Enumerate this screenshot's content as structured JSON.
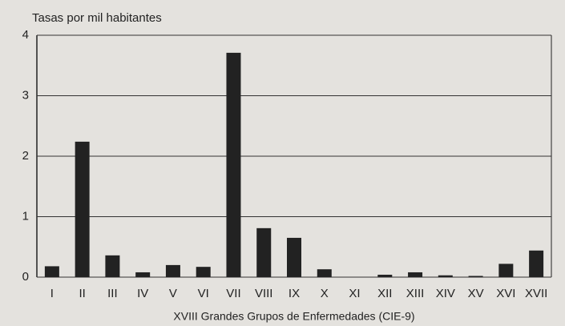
{
  "chart_data": {
    "type": "bar",
    "title": "Tasas por mil habitantes",
    "x_label": "XVIII Grandes Grupos de Enfermedades (CIE-9)",
    "categories": [
      "I",
      "II",
      "III",
      "IV",
      "V",
      "VI",
      "VII",
      "VIII",
      "IX",
      "X",
      "XI",
      "XII",
      "XIII",
      "XIV",
      "XV",
      "XVI",
      "XVII"
    ],
    "values": [
      0.18,
      2.24,
      0.36,
      0.08,
      0.2,
      0.17,
      3.71,
      0.81,
      0.65,
      0.13,
      0,
      0.04,
      0.08,
      0.03,
      0.02,
      0.22,
      0.44
    ],
    "color": "#222222",
    "ylim": [
      0,
      4
    ],
    "yticks": [
      0,
      1,
      2,
      3,
      4
    ],
    "grid": true
  }
}
